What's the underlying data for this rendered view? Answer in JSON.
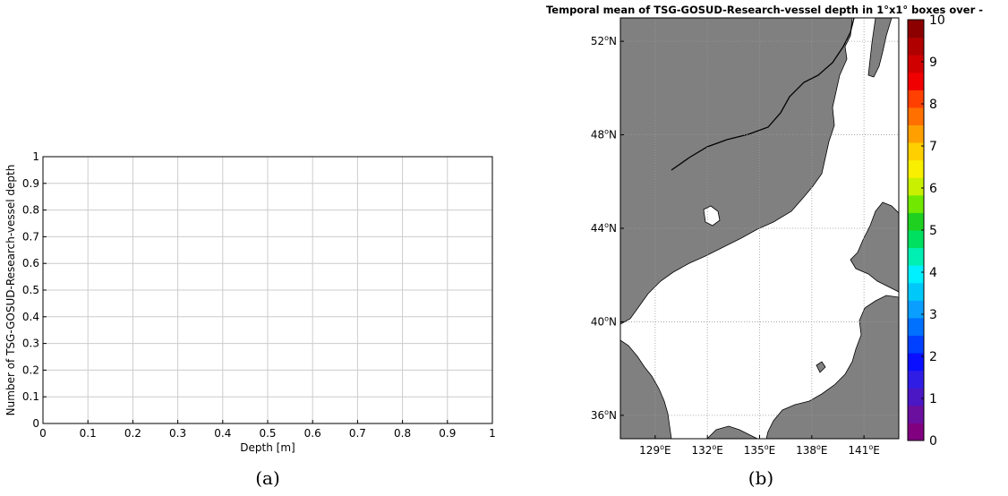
{
  "chart_data": [
    {
      "type": "line",
      "title": "",
      "xlabel": "Depth [m]",
      "ylabel": "Number of TSG-GOSUD-Research-vessel depth",
      "xlim": [
        0,
        1
      ],
      "ylim": [
        0,
        1
      ],
      "x_ticks": [
        "0",
        "0.1",
        "0.2",
        "0.3",
        "0.4",
        "0.5",
        "0.6",
        "0.7",
        "0.8",
        "0.9",
        "1"
      ],
      "y_ticks": [
        "0",
        "0.1",
        "0.2",
        "0.3",
        "0.4",
        "0.5",
        "0.6",
        "0.7",
        "0.8",
        "0.9",
        "1"
      ],
      "grid": true,
      "series": [],
      "caption": "(a)"
    },
    {
      "type": "heatmap",
      "title": "Temporal mean of TSG-GOSUD-Research-vessel depth in 1°x1° boxes over -",
      "lon_range": [
        127,
        143
      ],
      "lat_range": [
        35,
        53
      ],
      "lon_ticks": [
        129,
        132,
        135,
        138,
        141
      ],
      "lat_ticks": [
        36,
        40,
        44,
        48,
        52
      ],
      "lon_tick_labels": [
        "129°E",
        "132°E",
        "135°E",
        "138°E",
        "141°E"
      ],
      "lat_tick_labels": [
        "36°N",
        "40°N",
        "44°N",
        "48°N",
        "52°N"
      ],
      "grid": true,
      "colorbar": {
        "min": 0,
        "max": 10,
        "tick_labels": [
          "0",
          "1",
          "2",
          "3",
          "4",
          "5",
          "6",
          "7",
          "8",
          "9",
          "10"
        ],
        "colors": [
          "#800080",
          "#6a0f9e",
          "#4b16c4",
          "#2f1de6",
          "#0a10ff",
          "#0040ff",
          "#0070ff",
          "#0a9fff",
          "#00c8f8",
          "#00f0ff",
          "#00f0b4",
          "#00e060",
          "#20d020",
          "#70e800",
          "#c8f000",
          "#f8f000",
          "#ffd000",
          "#ffa000",
          "#ff7000",
          "#ff4000",
          "#f00000",
          "#d00000",
          "#b00000",
          "#8c0000"
        ]
      },
      "data_values": [],
      "land_color": "#808080",
      "sea_color": "#ffffff",
      "caption": "(b)"
    }
  ]
}
